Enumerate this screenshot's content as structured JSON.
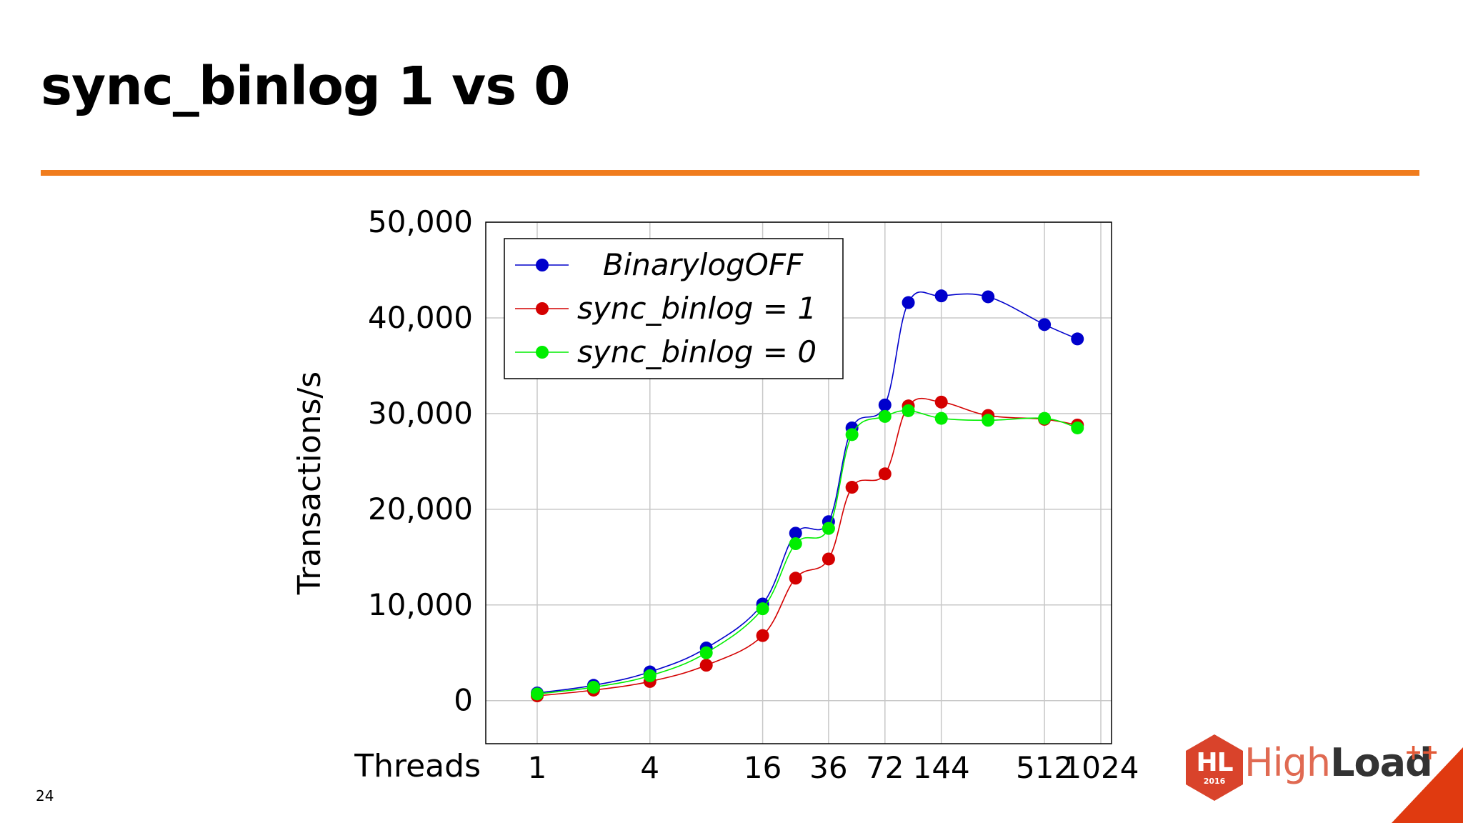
{
  "slide": {
    "title": "sync_binlog 1 vs 0",
    "page_number": "24",
    "accent_color": "#f07c1d"
  },
  "logo": {
    "badge": "HL",
    "year": "2016",
    "brand_light": "High",
    "brand_bold": "Load",
    "plus": "++"
  },
  "chart_data": {
    "type": "line",
    "title": "",
    "xlabel": "Threads",
    "ylabel": "Transactions/s",
    "x_ticks": [
      "1",
      "4",
      "16",
      "36",
      "72",
      "144",
      "512",
      "1024"
    ],
    "x_points": [
      "1",
      "2",
      "4",
      "8",
      "16",
      "24",
      "36",
      "48",
      "72",
      "96",
      "144",
      "256",
      "512",
      "768"
    ],
    "ylim": [
      -4500,
      50000
    ],
    "y_ticks": [
      0,
      10000,
      20000,
      30000,
      40000,
      50000
    ],
    "y_tick_labels": [
      "0",
      "10,000",
      "20,000",
      "30,000",
      "40,000",
      "50,000"
    ],
    "grid": true,
    "legend_position": "top-left",
    "series": [
      {
        "name": "BinarylogOFF",
        "color": "#0000cc",
        "values": [
          800,
          1600,
          3000,
          5500,
          10100,
          17500,
          18700,
          28500,
          30900,
          41600,
          42300,
          42200,
          39300,
          37800
        ]
      },
      {
        "name": "sync_binlog = 1",
        "color": "#d40000",
        "values": [
          500,
          1100,
          2000,
          3700,
          6800,
          12800,
          14800,
          22300,
          23700,
          30800,
          31200,
          29800,
          29400,
          28800
        ]
      },
      {
        "name": "sync_binlog = 0",
        "color": "#00ee00",
        "values": [
          700,
          1400,
          2600,
          5000,
          9600,
          16400,
          18000,
          27800,
          29700,
          30300,
          29500,
          29300,
          29500,
          28500
        ]
      }
    ]
  }
}
